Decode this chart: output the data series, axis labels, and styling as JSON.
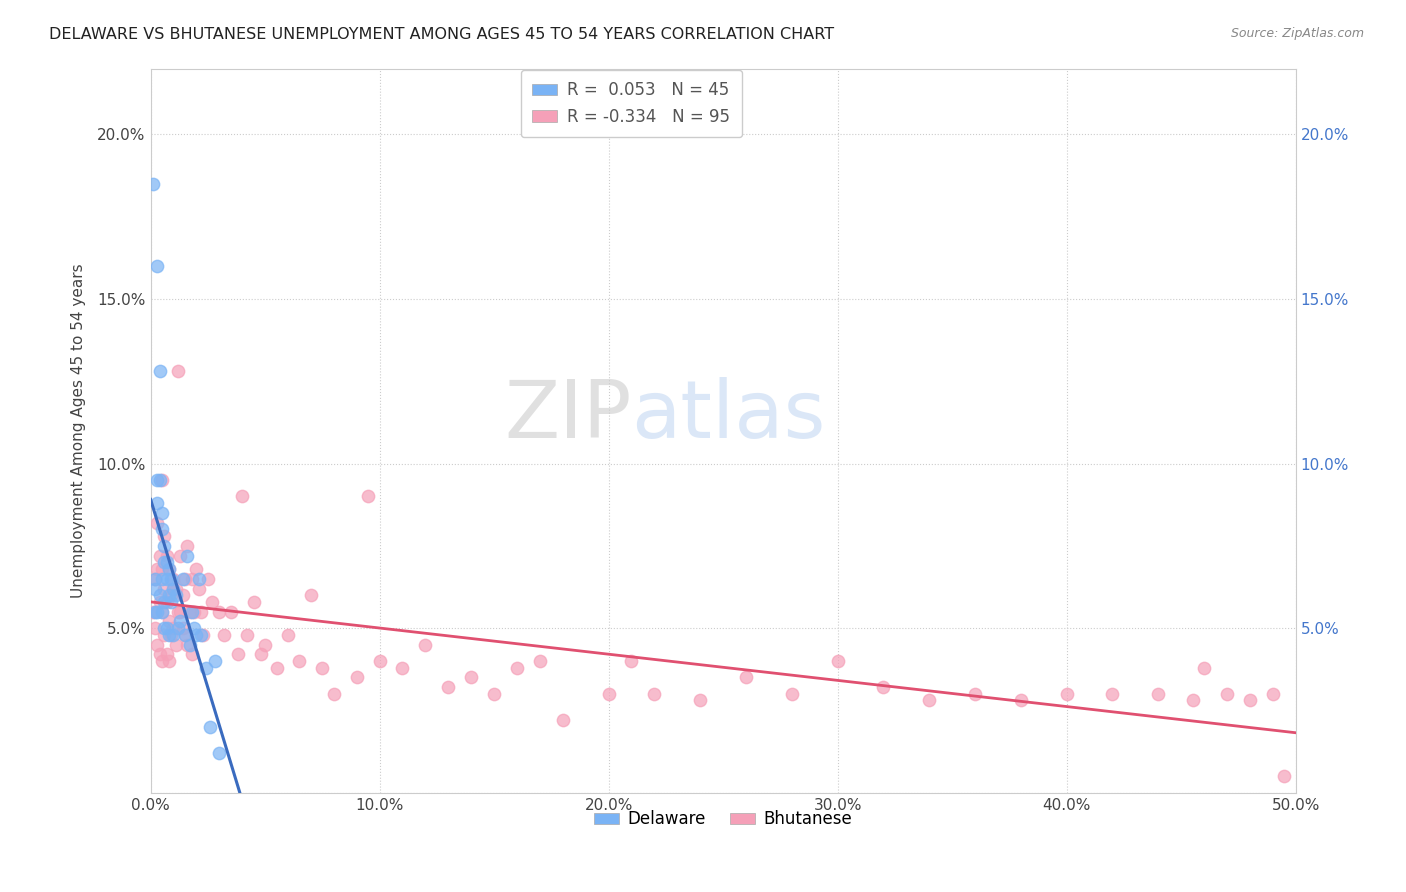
{
  "title": "DELAWARE VS BHUTANESE UNEMPLOYMENT AMONG AGES 45 TO 54 YEARS CORRELATION CHART",
  "source": "Source: ZipAtlas.com",
  "ylabel": "Unemployment Among Ages 45 to 54 years",
  "watermark_zip": "ZIP",
  "watermark_atlas": "atlas",
  "xlim": [
    0,
    0.5
  ],
  "ylim": [
    0,
    0.22
  ],
  "xticks": [
    0.0,
    0.1,
    0.2,
    0.3,
    0.4,
    0.5
  ],
  "xtick_labels": [
    "0.0%",
    "10.0%",
    "20.0%",
    "30.0%",
    "40.0%",
    "50.0%"
  ],
  "yticks_left": [
    0.0,
    0.05,
    0.1,
    0.15,
    0.2
  ],
  "ytick_labels_left": [
    "",
    "5.0%",
    "10.0%",
    "15.0%",
    "20.0%"
  ],
  "yticks_right": [
    0.05,
    0.1,
    0.15,
    0.2
  ],
  "ytick_labels_right": [
    "5.0%",
    "10.0%",
    "15.0%",
    "20.0%"
  ],
  "delaware_R": 0.053,
  "delaware_N": 45,
  "bhutanese_R": -0.334,
  "bhutanese_N": 95,
  "delaware_color": "#7ab3f5",
  "bhutanese_color": "#f5a0b8",
  "delaware_trend_color": "#3a6bbf",
  "bhutanese_trend_color": "#e05070",
  "delaware_trend_dash_color": "#8ab4e8",
  "delaware_x": [
    0.001,
    0.002,
    0.002,
    0.002,
    0.003,
    0.003,
    0.003,
    0.003,
    0.004,
    0.004,
    0.004,
    0.005,
    0.005,
    0.005,
    0.005,
    0.006,
    0.006,
    0.006,
    0.006,
    0.007,
    0.007,
    0.007,
    0.008,
    0.008,
    0.008,
    0.009,
    0.009,
    0.01,
    0.01,
    0.011,
    0.012,
    0.013,
    0.014,
    0.015,
    0.016,
    0.017,
    0.018,
    0.019,
    0.02,
    0.021,
    0.022,
    0.024,
    0.026,
    0.028,
    0.03
  ],
  "delaware_y": [
    0.185,
    0.065,
    0.062,
    0.055,
    0.16,
    0.095,
    0.088,
    0.055,
    0.128,
    0.095,
    0.06,
    0.085,
    0.08,
    0.065,
    0.055,
    0.075,
    0.07,
    0.058,
    0.05,
    0.07,
    0.065,
    0.05,
    0.068,
    0.06,
    0.048,
    0.065,
    0.058,
    0.062,
    0.048,
    0.06,
    0.05,
    0.052,
    0.065,
    0.048,
    0.072,
    0.045,
    0.055,
    0.05,
    0.048,
    0.065,
    0.048,
    0.038,
    0.02,
    0.04,
    0.012
  ],
  "bhutanese_x": [
    0.001,
    0.002,
    0.002,
    0.003,
    0.003,
    0.003,
    0.004,
    0.004,
    0.004,
    0.005,
    0.005,
    0.005,
    0.005,
    0.006,
    0.006,
    0.006,
    0.007,
    0.007,
    0.007,
    0.008,
    0.008,
    0.008,
    0.009,
    0.009,
    0.01,
    0.01,
    0.011,
    0.011,
    0.012,
    0.013,
    0.013,
    0.014,
    0.015,
    0.015,
    0.016,
    0.017,
    0.018,
    0.019,
    0.02,
    0.021,
    0.022,
    0.023,
    0.025,
    0.027,
    0.03,
    0.032,
    0.035,
    0.038,
    0.04,
    0.042,
    0.045,
    0.048,
    0.05,
    0.055,
    0.06,
    0.065,
    0.07,
    0.075,
    0.08,
    0.09,
    0.095,
    0.1,
    0.11,
    0.12,
    0.13,
    0.14,
    0.15,
    0.16,
    0.17,
    0.18,
    0.2,
    0.21,
    0.22,
    0.24,
    0.26,
    0.28,
    0.3,
    0.32,
    0.34,
    0.36,
    0.38,
    0.4,
    0.42,
    0.44,
    0.455,
    0.46,
    0.47,
    0.48,
    0.49,
    0.495,
    0.01,
    0.012,
    0.014,
    0.016,
    0.018
  ],
  "bhutanese_y": [
    0.055,
    0.065,
    0.05,
    0.082,
    0.068,
    0.045,
    0.072,
    0.058,
    0.042,
    0.095,
    0.068,
    0.055,
    0.04,
    0.078,
    0.062,
    0.048,
    0.072,
    0.058,
    0.042,
    0.068,
    0.052,
    0.04,
    0.06,
    0.048,
    0.065,
    0.05,
    0.062,
    0.045,
    0.128,
    0.072,
    0.055,
    0.06,
    0.065,
    0.048,
    0.075,
    0.055,
    0.065,
    0.055,
    0.068,
    0.062,
    0.055,
    0.048,
    0.065,
    0.058,
    0.055,
    0.048,
    0.055,
    0.042,
    0.09,
    0.048,
    0.058,
    0.042,
    0.045,
    0.038,
    0.048,
    0.04,
    0.06,
    0.038,
    0.03,
    0.035,
    0.09,
    0.04,
    0.038,
    0.045,
    0.032,
    0.035,
    0.03,
    0.038,
    0.04,
    0.022,
    0.03,
    0.04,
    0.03,
    0.028,
    0.035,
    0.03,
    0.04,
    0.032,
    0.028,
    0.03,
    0.028,
    0.03,
    0.03,
    0.03,
    0.028,
    0.038,
    0.03,
    0.028,
    0.03,
    0.005,
    0.062,
    0.055,
    0.05,
    0.045,
    0.042
  ]
}
